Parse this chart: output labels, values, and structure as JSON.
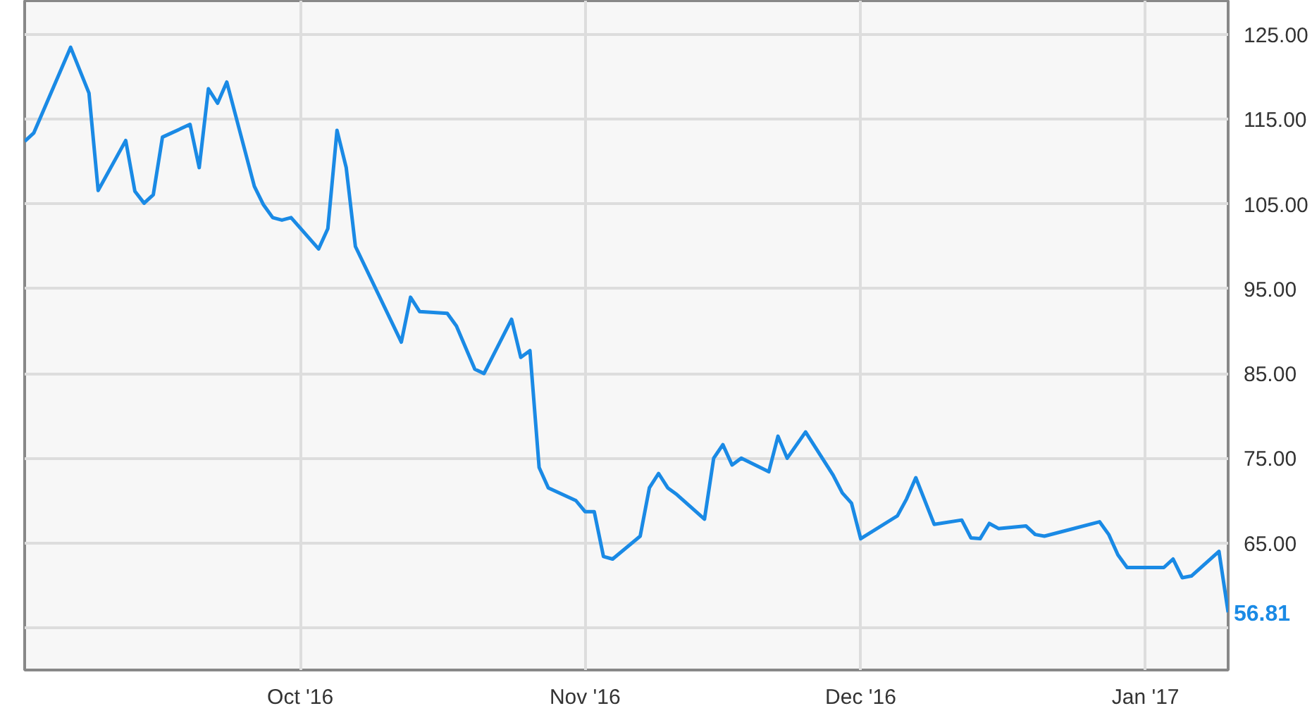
{
  "chart_data": {
    "type": "line",
    "x": [
      "2016-09-01",
      "2016-09-02",
      "2016-09-06",
      "2016-09-08",
      "2016-09-09",
      "2016-09-12",
      "2016-09-13",
      "2016-09-14",
      "2016-09-15",
      "2016-09-16",
      "2016-09-19",
      "2016-09-20",
      "2016-09-21",
      "2016-09-22",
      "2016-09-23",
      "2016-09-26",
      "2016-09-27",
      "2016-09-28",
      "2016-09-29",
      "2016-09-30",
      "2016-10-03",
      "2016-10-04",
      "2016-10-05",
      "2016-10-06",
      "2016-10-07",
      "2016-10-12",
      "2016-10-13",
      "2016-10-14",
      "2016-10-17",
      "2016-10-18",
      "2016-10-20",
      "2016-10-21",
      "2016-10-24",
      "2016-10-25",
      "2016-10-26",
      "2016-10-27",
      "2016-10-28",
      "2016-10-31",
      "2016-11-01",
      "2016-11-02",
      "2016-11-03",
      "2016-11-04",
      "2016-11-07",
      "2016-11-08",
      "2016-11-09",
      "2016-11-10",
      "2016-11-11",
      "2016-11-14",
      "2016-11-15",
      "2016-11-16",
      "2016-11-17",
      "2016-11-18",
      "2016-11-21",
      "2016-11-22",
      "2016-11-23",
      "2016-11-25",
      "2016-11-28",
      "2016-11-29",
      "2016-11-30",
      "2016-12-01",
      "2016-12-05",
      "2016-12-06",
      "2016-12-07",
      "2016-12-09",
      "2016-12-12",
      "2016-12-13",
      "2016-12-14",
      "2016-12-15",
      "2016-12-16",
      "2016-12-19",
      "2016-12-20",
      "2016-12-21",
      "2016-12-27",
      "2016-12-28",
      "2016-12-29",
      "2016-12-30",
      "2017-01-03",
      "2017-01-04",
      "2017-01-05",
      "2017-01-06",
      "2017-01-09",
      "2017-01-10"
    ],
    "series": [
      {
        "color": "#1a8ae5",
        "values": [
          112.4,
          113.4,
          123.5,
          118.1,
          106.6,
          112.5,
          106.5,
          105.1,
          106.1,
          112.9,
          114.4,
          109.3,
          118.6,
          116.9,
          119.4,
          107.1,
          104.9,
          103.4,
          103.1,
          103.4,
          99.7,
          102.1,
          113.7,
          109.3,
          100.0,
          88.7,
          94.0,
          92.3,
          92.1,
          90.6,
          85.5,
          85.0,
          91.4,
          86.9,
          87.7,
          73.9,
          71.5,
          70.0,
          68.7,
          68.7,
          63.4,
          63.1,
          65.8,
          71.5,
          73.2,
          71.5,
          70.7,
          67.8,
          75.0,
          76.6,
          74.2,
          75.0,
          73.4,
          77.6,
          75.0,
          78.1,
          73.0,
          70.9,
          69.7,
          65.5,
          68.2,
          70.2,
          72.7,
          67.2,
          67.7,
          65.6,
          65.5,
          67.3,
          66.7,
          67.0,
          66.0,
          65.8,
          67.5,
          66.0,
          63.6,
          62.1,
          62.1,
          63.1,
          60.9,
          61.1,
          64.0,
          56.81
        ]
      }
    ],
    "xlim": [
      "2016-09-01",
      "2017-01-10"
    ],
    "xticks": [
      {
        "value": "2016-10-01",
        "label": "Oct '16"
      },
      {
        "value": "2016-11-01",
        "label": "Nov '16"
      },
      {
        "value": "2016-12-01",
        "label": "Dec '16"
      },
      {
        "value": "2017-01-01",
        "label": "Jan '17"
      }
    ],
    "ylim": [
      50,
      129
    ],
    "yticks": [
      {
        "value": 55,
        "label": null
      },
      {
        "value": 65,
        "label": "65.00"
      },
      {
        "value": 75,
        "label": "75.00"
      },
      {
        "value": 85,
        "label": "85.00"
      },
      {
        "value": 95,
        "label": "95.00"
      },
      {
        "value": 105,
        "label": "105.00"
      },
      {
        "value": 115,
        "label": "115.00"
      },
      {
        "value": 125,
        "label": "125.00"
      }
    ],
    "grid": true,
    "annotations": [
      {
        "text": "56.81",
        "x": "2017-01-10",
        "y": 56.81
      }
    ]
  }
}
